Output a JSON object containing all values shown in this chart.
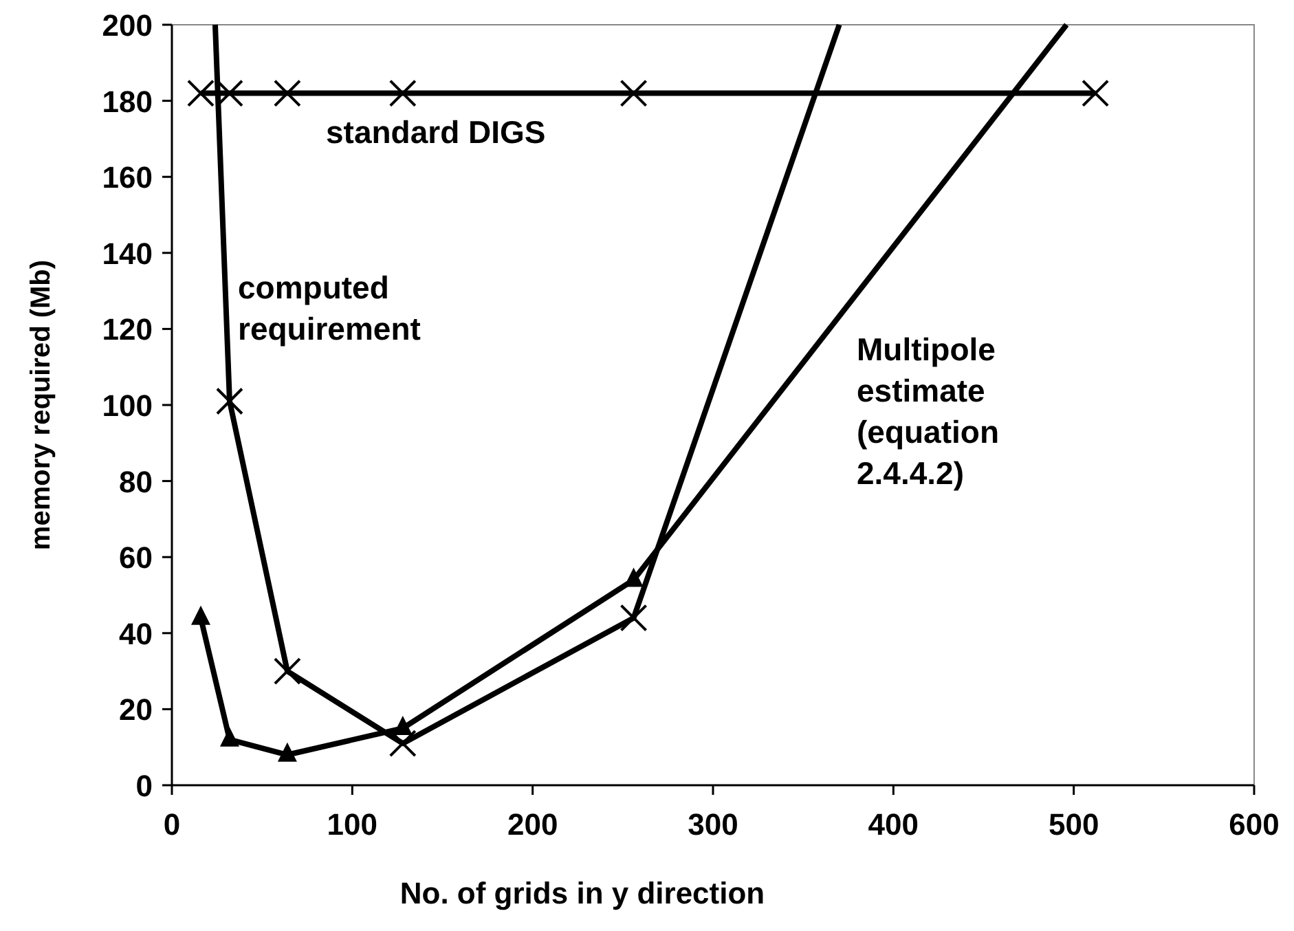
{
  "chart_data": {
    "type": "line",
    "xlabel": "No. of grids in y direction",
    "ylabel": "memory required (Mb)",
    "xlim": [
      0,
      600
    ],
    "ylim": [
      0,
      200
    ],
    "xticks": [
      0,
      100,
      200,
      300,
      400,
      500,
      600
    ],
    "yticks": [
      0,
      20,
      40,
      60,
      80,
      100,
      120,
      140,
      160,
      180,
      200
    ],
    "grid": false,
    "series": [
      {
        "name": "standard DIGS",
        "color": "#000000",
        "marker": "cross",
        "x": [
          16,
          32,
          64,
          128,
          256,
          512
        ],
        "values": [
          182,
          182,
          182,
          182,
          182,
          182
        ]
      },
      {
        "name": "computed requirement",
        "color": "#000000",
        "marker": "cross",
        "x": [
          24,
          32,
          64,
          128,
          256,
          370
        ],
        "values": [
          200,
          101,
          30,
          11,
          44,
          200
        ]
      },
      {
        "name": "Multipole estimate (equation 2.4.4.2)",
        "color": "#000000",
        "marker": "triangle",
        "x": [
          16,
          32,
          64,
          128,
          256,
          496
        ],
        "values": [
          44,
          12,
          8,
          15,
          54,
          200
        ]
      }
    ]
  }
}
